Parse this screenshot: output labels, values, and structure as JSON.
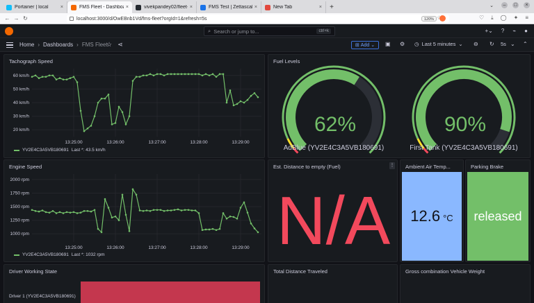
{
  "browser": {
    "tabs": [
      {
        "label": "Portainer | local",
        "color": "#13bef9",
        "active": false
      },
      {
        "label": "FMS Fleet - Dashboards",
        "color": "#f46800",
        "active": true
      },
      {
        "label": "vivekpandey02/fleet-ma",
        "color": "#24292f",
        "active": false
      },
      {
        "label": "FMS Test | Zettascale Pla",
        "color": "#1a73e8",
        "active": false
      },
      {
        "label": "New Tab",
        "color": "#e2483d",
        "active": false
      }
    ],
    "new_tab": "+",
    "url": "localhost:3000/d/OwEBnb1Vd/fms-fleet?orgId=1&refresh=5s",
    "zoom": "120%"
  },
  "grafana": {
    "search_placeholder": "Search or jump to...",
    "search_shortcut": "ctrl+k",
    "breadcrumb": [
      "Home",
      "Dashboards",
      "FMS Fleet"
    ],
    "add_label": "Add",
    "time_range": "Last 5 minutes",
    "refresh": "5s"
  },
  "panels": {
    "tachograph": {
      "title": "Tachograph Speed",
      "legend_series": "YV2E4C3A5VB180691",
      "legend_last": "Last *: 43.5 km/h"
    },
    "fuel": {
      "title": "Fuel Levels",
      "gauges": [
        {
          "value": 62,
          "display": "62%",
          "label": "AdBlue (YV2E4C3A5VB180691)"
        },
        {
          "value": 90,
          "display": "90%",
          "label": "First Tank (YV2E4C3A5VB180691)"
        }
      ],
      "colors": {
        "ok": "#73bf69",
        "warn": "#fade2a",
        "crit": "#f2495c",
        "track": "#2c2f36"
      }
    },
    "engine": {
      "title": "Engine Speed",
      "legend_series": "YV2E4C3A5VB180691",
      "legend_last": "Last *: 1032 rpm"
    },
    "distance_empty": {
      "title": "Est. Distance to empty (Fuel)",
      "value": "N/A",
      "color": "#f2495c"
    },
    "air_temp": {
      "title": "Ambient Air Temp...",
      "value": "12.6",
      "unit": "°C",
      "color": "#8ab8ff"
    },
    "parking_brake": {
      "title": "Parking Brake",
      "value": "released",
      "color": "#73bf69"
    },
    "driver_state": {
      "title": "Driver Working State",
      "row_label": "Driver 1 (YV2E4C3A5VB180691)",
      "bar_color": "#c4374e"
    },
    "total_distance": {
      "title": "Total Distance Traveled"
    },
    "gross_weight": {
      "title": "Gross combination Vehicle Weight"
    }
  },
  "chart_data": [
    {
      "type": "line",
      "title": "Tachograph Speed",
      "ylabel": "km/h",
      "ylim": [
        15,
        65
      ],
      "yticks": [
        "60 km/h",
        "50 km/h",
        "40 km/h",
        "30 km/h",
        "20 km/h"
      ],
      "ytick_values": [
        60,
        50,
        40,
        30,
        20
      ],
      "xticks": [
        "13:25:00",
        "13:26:00",
        "13:27:00",
        "13:28:00",
        "13:29:00"
      ],
      "xlim": [
        0,
        330
      ],
      "xtick_values": [
        60,
        120,
        180,
        240,
        300
      ],
      "series": [
        {
          "name": "YV2E4C3A5VB180691",
          "x": [
            0,
            5,
            10,
            15,
            20,
            25,
            30,
            35,
            40,
            45,
            50,
            55,
            60,
            65,
            70,
            75,
            80,
            85,
            90,
            95,
            100,
            105,
            110,
            115,
            120,
            125,
            130,
            135,
            140,
            145,
            150,
            155,
            160,
            165,
            170,
            175,
            180,
            185,
            190,
            195,
            200,
            205,
            210,
            215,
            220,
            225,
            230,
            235,
            240,
            245,
            250,
            255,
            260,
            265,
            270,
            275,
            280,
            285,
            290,
            295,
            300,
            305,
            310,
            315,
            320,
            325
          ],
          "values": [
            59,
            60,
            58,
            59,
            59,
            60,
            60,
            57,
            58,
            57,
            57,
            58,
            59,
            55,
            34,
            19,
            21,
            23,
            30,
            40,
            43,
            43,
            46,
            24,
            25,
            37,
            33,
            24,
            30,
            56,
            59,
            59,
            60,
            60,
            61,
            60,
            61,
            61,
            60,
            61,
            61,
            61,
            61,
            61,
            61,
            61,
            61,
            61,
            61,
            60,
            61,
            60,
            61,
            59,
            61,
            61,
            40,
            49,
            38,
            39,
            41,
            40,
            42,
            45,
            47,
            44
          ]
        }
      ]
    },
    {
      "type": "line",
      "title": "Engine Speed",
      "ylabel": "rpm",
      "ylim": [
        850,
        2100
      ],
      "yticks": [
        "2000 rpm",
        "1750 rpm",
        "1500 rpm",
        "1250 rpm",
        "1000 rpm"
      ],
      "ytick_values": [
        2000,
        1750,
        1500,
        1250,
        1000
      ],
      "xticks": [
        "13:25:00",
        "13:26:00",
        "13:27:00",
        "13:28:00",
        "13:29:00"
      ],
      "xlim": [
        0,
        330
      ],
      "xtick_values": [
        60,
        120,
        180,
        240,
        300
      ],
      "series": [
        {
          "name": "YV2E4C3A5VB180691",
          "x": [
            0,
            5,
            10,
            15,
            20,
            25,
            30,
            35,
            40,
            45,
            50,
            55,
            60,
            65,
            70,
            75,
            80,
            85,
            90,
            95,
            100,
            105,
            110,
            115,
            120,
            125,
            130,
            135,
            140,
            145,
            150,
            155,
            160,
            165,
            170,
            175,
            180,
            185,
            190,
            195,
            200,
            205,
            210,
            215,
            220,
            225,
            230,
            235,
            240,
            245,
            250,
            255,
            260,
            265,
            270,
            275,
            280,
            285,
            290,
            295,
            300,
            305,
            310,
            315,
            320,
            325
          ],
          "values": [
            1440,
            1420,
            1410,
            1430,
            1400,
            1390,
            1420,
            1380,
            1400,
            1380,
            1400,
            1390,
            1400,
            1380,
            1390,
            1420,
            1420,
            1410,
            1440,
            1090,
            1030,
            1640,
            1480,
            1300,
            1320,
            1250,
            1720,
            1350,
            1050,
            1820,
            1720,
            1430,
            1420,
            1430,
            1420,
            1440,
            1440,
            1440,
            1420,
            1430,
            1430,
            1440,
            1450,
            1430,
            1440,
            1440,
            1430,
            1430,
            1380,
            1070,
            1080,
            1080,
            1090,
            1070,
            1090,
            1380,
            1280,
            1320,
            1310,
            1280,
            1480,
            1580,
            1390,
            1190,
            1100,
            1030
          ]
        }
      ]
    }
  ]
}
